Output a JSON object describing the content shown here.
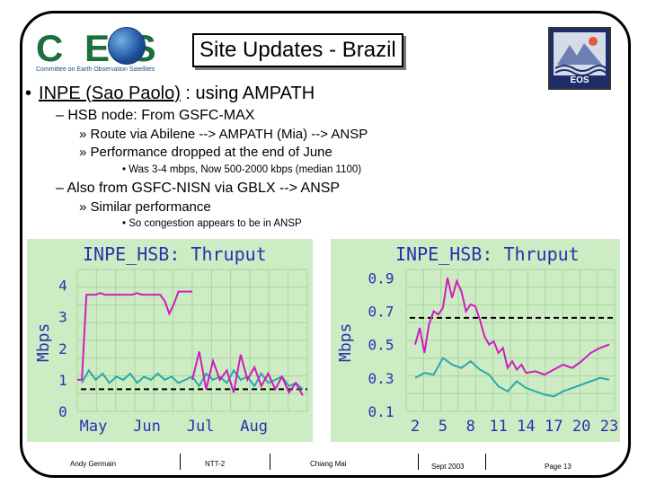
{
  "header": {
    "ceos_logo_text": "CEOS",
    "ceos_logo_subtitle": "Committee on Earth Observation Satellites",
    "title": "Site Updates - Brazil",
    "eos_logo_text": "EOS"
  },
  "bullets": {
    "l1_lead": "INPE (Sao Paolo)",
    "l1_rest": " : using AMPATH",
    "l2_1": "HSB node: From GSFC-MAX",
    "l3_1": "Route via Abilene --> AMPATH (Mia) --> ANSP",
    "l3_2": "Performance dropped at the end of June",
    "l4_1": "Was 3-4 mbps, Now 500-2000 kbps (median 1100)",
    "l2_2": "Also from GSFC-NISN via GBLX --> ANSP",
    "l3_3": "Similar performance",
    "l4_2": "So congestion appears to be in ANSP",
    "dash": "–",
    "raquo": "»",
    "bullet": "•",
    "dot": "•"
  },
  "chart_data": [
    {
      "type": "line",
      "title": "INPE_HSB: Thruput",
      "ylabel": "Mbps",
      "xlabel": "",
      "categories": [
        "May",
        "Jun",
        "Jul",
        "Aug"
      ],
      "yticks": [
        "0",
        "1",
        "2",
        "3",
        "4"
      ],
      "ylim": [
        0,
        4.5
      ],
      "grid": true,
      "colors": {
        "background": "#cdecc4",
        "grid": "#a7d69c",
        "pink": "#d11cc0",
        "cyan": "#2aa9a9",
        "title": "#2a2fb0"
      },
      "series": [
        {
          "color": "#d11cc0",
          "x": [
            0,
            0.02,
            0.04,
            0.06,
            0.08,
            0.1,
            0.12,
            0.14,
            0.16,
            0.18,
            0.2,
            0.22,
            0.24,
            0.26,
            0.28,
            0.3,
            0.32,
            0.34,
            0.36,
            0.38,
            0.4,
            0.42,
            0.44,
            0.46,
            0.48,
            0.5
          ],
          "values": [
            1.0,
            1.0,
            3.7,
            3.7,
            3.7,
            3.75,
            3.7,
            3.7,
            3.7,
            3.7,
            3.7,
            3.7,
            3.7,
            3.75,
            3.7,
            3.7,
            3.7,
            3.7,
            3.7,
            3.5,
            3.1,
            3.4,
            3.8,
            3.8,
            3.8,
            3.8
          ]
        },
        {
          "color": "#2aa9a9",
          "x": [
            0.02,
            0.05,
            0.08,
            0.11,
            0.14,
            0.17,
            0.2,
            0.23,
            0.26,
            0.29,
            0.32,
            0.35,
            0.38,
            0.41,
            0.44,
            0.47,
            0.5,
            0.53,
            0.56,
            0.59,
            0.62,
            0.65,
            0.68,
            0.71,
            0.74,
            0.77,
            0.8,
            0.83,
            0.86,
            0.89,
            0.92,
            0.95,
            0.98
          ],
          "values": [
            0.9,
            1.3,
            1.0,
            1.2,
            0.9,
            1.1,
            1.0,
            1.2,
            0.9,
            1.1,
            1.0,
            1.2,
            1.0,
            1.1,
            0.9,
            1.0,
            1.1,
            0.8,
            1.2,
            1.0,
            1.1,
            0.9,
            1.3,
            1.0,
            1.1,
            0.8,
            1.2,
            0.9,
            1.0,
            1.1,
            0.8,
            0.9,
            0.7
          ]
        },
        {
          "color": "#d11cc0",
          "x": [
            0.5,
            0.53,
            0.56,
            0.59,
            0.62,
            0.65,
            0.68,
            0.71,
            0.74,
            0.77,
            0.8,
            0.83,
            0.86,
            0.89,
            0.92,
            0.95,
            0.98
          ],
          "values": [
            1.0,
            1.9,
            0.7,
            1.6,
            1.0,
            1.3,
            0.6,
            1.8,
            1.0,
            1.4,
            0.8,
            1.2,
            0.7,
            1.1,
            0.6,
            0.9,
            0.5
          ]
        }
      ],
      "reference": {
        "value": 0.7,
        "style": "dashed"
      }
    },
    {
      "type": "line",
      "title": "INPE_HSB: Thruput",
      "ylabel": "Mbps",
      "xlabel": "",
      "categories": [
        "2",
        "5",
        "8",
        "11",
        "14",
        "17",
        "20",
        "23"
      ],
      "yticks": [
        "0.1",
        "0.3",
        "0.5",
        "0.7",
        "0.9"
      ],
      "ylim": [
        0.1,
        0.95
      ],
      "grid": true,
      "colors": {
        "background": "#cdecc4",
        "grid": "#a7d69c",
        "pink": "#d11cc0",
        "cyan": "#2aa9a9",
        "title": "#2a2fb0"
      },
      "series": [
        {
          "color": "#d11cc0",
          "x": [
            2,
            2.5,
            3,
            3.5,
            4,
            4.5,
            5,
            5.5,
            6,
            6.5,
            7,
            7.5,
            8,
            8.5,
            9,
            9.5,
            10,
            10.5,
            11,
            11.5,
            12,
            12.5,
            13,
            13.5,
            14,
            15,
            16,
            17,
            18,
            19,
            20,
            21,
            22,
            23
          ],
          "values": [
            0.5,
            0.6,
            0.45,
            0.62,
            0.7,
            0.68,
            0.72,
            0.9,
            0.78,
            0.88,
            0.82,
            0.7,
            0.74,
            0.73,
            0.65,
            0.55,
            0.5,
            0.52,
            0.45,
            0.48,
            0.36,
            0.4,
            0.35,
            0.38,
            0.33,
            0.34,
            0.32,
            0.35,
            0.38,
            0.36,
            0.4,
            0.45,
            0.48,
            0.5
          ]
        },
        {
          "color": "#2aa9a9",
          "x": [
            2,
            3,
            4,
            5,
            6,
            7,
            8,
            9,
            10,
            11,
            12,
            13,
            14,
            15,
            16,
            17,
            18,
            19,
            20,
            21,
            22,
            23
          ],
          "values": [
            0.3,
            0.33,
            0.32,
            0.42,
            0.38,
            0.36,
            0.4,
            0.35,
            0.32,
            0.25,
            0.22,
            0.28,
            0.24,
            0.22,
            0.2,
            0.19,
            0.22,
            0.24,
            0.26,
            0.28,
            0.3,
            0.29
          ]
        }
      ],
      "reference": {
        "value": 0.66,
        "style": "dashed"
      }
    }
  ],
  "footer": {
    "author": "Andy Germain",
    "event": "NTT-2",
    "location": "Chiang Mai",
    "date": "Sept 2003",
    "page": "Page 13"
  }
}
